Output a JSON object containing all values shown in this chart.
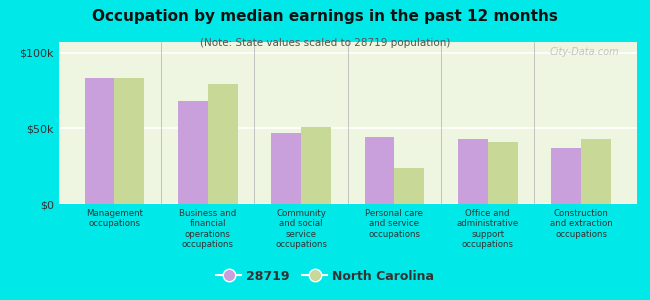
{
  "title": "Occupation by median earnings in the past 12 months",
  "subtitle": "(Note: State values scaled to 28719 population)",
  "categories": [
    "Management\noccupations",
    "Business and\nfinancial\noperations\noccupations",
    "Community\nand social\nservice\noccupations",
    "Personal care\nand service\noccupations",
    "Office and\nadministrative\nsupport\noccupations",
    "Construction\nand extraction\noccupations"
  ],
  "values_28719": [
    83000,
    68000,
    47000,
    44000,
    43000,
    37000
  ],
  "values_nc": [
    83000,
    79000,
    51000,
    24000,
    41000,
    43000
  ],
  "color_28719": "#c9a0dc",
  "color_nc": "#c8d896",
  "background_color": "#00e8e8",
  "plot_bg": "#eef5e0",
  "legend_28719": "28719",
  "legend_nc": "North Carolina",
  "ylim": [
    0,
    107000
  ],
  "yticks": [
    0,
    50000,
    100000
  ],
  "ytick_labels": [
    "$0",
    "$50k",
    "$100k"
  ],
  "bar_width": 0.32,
  "watermark": "City-Data.com"
}
